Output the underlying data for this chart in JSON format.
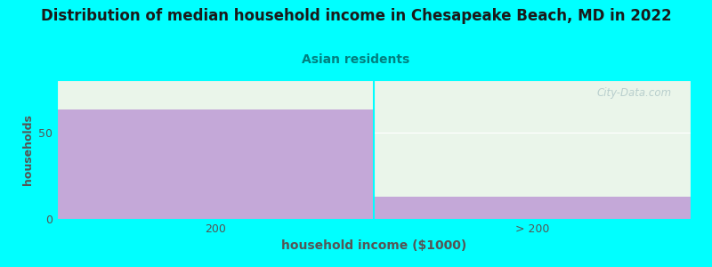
{
  "title": "Distribution of median household income in Chesapeake Beach, MD in 2022",
  "subtitle": "Asian residents",
  "xlabel": "household income ($1000)",
  "ylabel": "households",
  "categories": [
    "200",
    "> 200"
  ],
  "values": [
    63,
    13
  ],
  "ylim": [
    0,
    80
  ],
  "yticks": [
    0,
    50
  ],
  "bar_color": "#c4a8d8",
  "background_color": "#00ffff",
  "plot_bg_top": "#f0faf0",
  "plot_bg_bottom": "#e8f5e8",
  "title_color": "#1a1a1a",
  "subtitle_color": "#008080",
  "axis_color": "#555555",
  "watermark": "City-Data.com",
  "watermark_color": "#b0c8c8",
  "title_fontsize": 12,
  "subtitle_fontsize": 10,
  "xlabel_fontsize": 10,
  "ylabel_fontsize": 9
}
